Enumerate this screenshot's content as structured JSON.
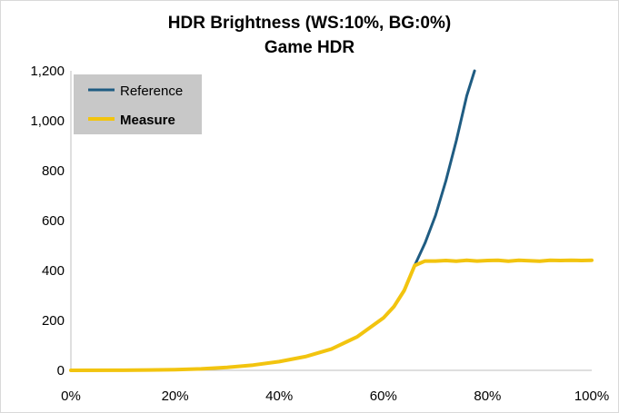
{
  "chart_data": {
    "type": "line",
    "title": "HDR Brightness (WS:10%, BG:0%)",
    "subtitle": "Game HDR",
    "xlabel": "",
    "ylabel": "",
    "xlim": [
      0,
      100
    ],
    "ylim": [
      0,
      1200
    ],
    "x_ticks": [
      "0%",
      "20%",
      "40%",
      "60%",
      "80%",
      "100%"
    ],
    "y_ticks": [
      "0",
      "200",
      "400",
      "600",
      "800",
      "1,000",
      "1,200"
    ],
    "grid": false,
    "legend_position": "top-left",
    "series": [
      {
        "name": "Reference",
        "color": "#1f5c82",
        "x": [
          0,
          10,
          15,
          20,
          25,
          30,
          35,
          40,
          45,
          50,
          55,
          60,
          62,
          64,
          66,
          68,
          70,
          72,
          74,
          76,
          77.5
        ],
        "y": [
          0,
          0.5,
          1.5,
          3,
          6,
          12,
          21,
          35,
          55,
          85,
          135,
          210,
          255,
          320,
          420,
          510,
          620,
          760,
          920,
          1100,
          1200
        ]
      },
      {
        "name": "Measure",
        "color": "#f2c40f",
        "x": [
          0,
          10,
          15,
          20,
          25,
          30,
          35,
          40,
          45,
          50,
          55,
          60,
          62,
          64,
          66,
          68,
          70,
          72,
          74,
          76,
          78,
          80,
          82,
          84,
          86,
          88,
          90,
          92,
          94,
          96,
          98,
          100
        ],
        "y": [
          0,
          0.5,
          1.5,
          3,
          6,
          12,
          21,
          35,
          55,
          85,
          135,
          210,
          255,
          320,
          420,
          438,
          438,
          440,
          437,
          441,
          438,
          440,
          441,
          437,
          441,
          439,
          437,
          441,
          440,
          441,
          440,
          441
        ]
      }
    ]
  },
  "legend": {
    "reference_label": "Reference",
    "measure_label": "Measure"
  }
}
